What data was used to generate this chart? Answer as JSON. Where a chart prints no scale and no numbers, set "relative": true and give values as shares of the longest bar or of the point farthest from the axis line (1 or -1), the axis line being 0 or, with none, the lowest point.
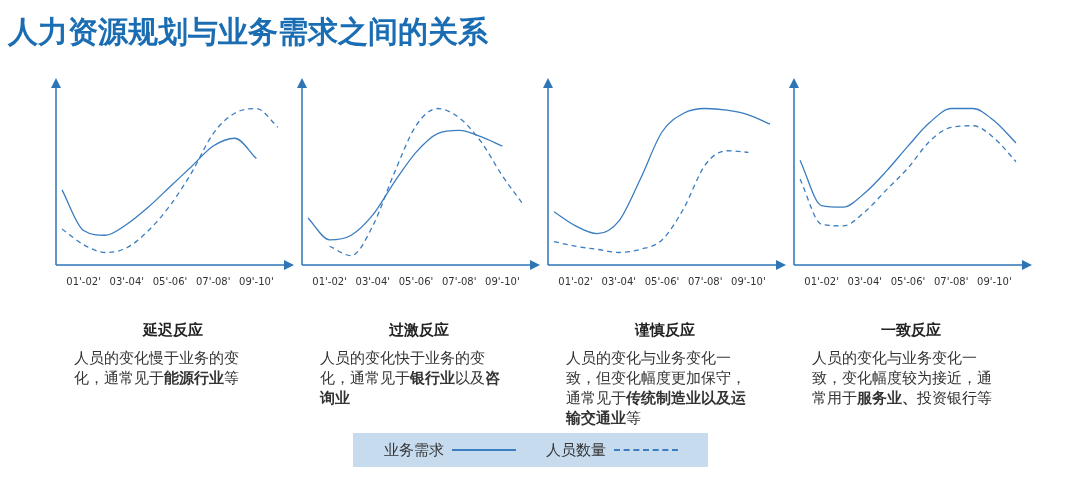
{
  "chart_data": [
    {
      "type": "other",
      "title": "人力资源规划与业务需求之间的关系"
    },
    {
      "type": "line",
      "relative": true,
      "title": "延迟反应",
      "legend": "bottom",
      "categories": [
        null,
        "01'-02'",
        null,
        "03'-04'",
        null,
        "05'-06'",
        null,
        "07'-08'",
        null,
        "09'-10'",
        null
      ],
      "series": [
        {
          "name": "业务需求",
          "color": "#3a7dc0",
          "line_style": "solid",
          "values": [
            0.48,
            0.22,
            0.19,
            0.26,
            0.37,
            0.5,
            0.63,
            0.76,
            0.81,
            0.68,
            null
          ]
        },
        {
          "name": "人员数量",
          "color": "#3a7dc0",
          "line_style": "dashed",
          "values": [
            0.23,
            0.13,
            0.08,
            0.11,
            0.22,
            0.38,
            0.59,
            0.84,
            0.97,
            1.0,
            0.88
          ]
        }
      ],
      "annotations": [
        "人员的变化慢于业务的变化，通常见于",
        "能源行业",
        "等"
      ]
    },
    {
      "type": "line",
      "relative": true,
      "title": "过激反应",
      "categories": [
        null,
        "01'-02'",
        null,
        "03'-04'",
        null,
        "05'-06'",
        null,
        "07'-08'",
        null,
        "09'-10'",
        null
      ],
      "series": [
        {
          "color": "#3a7dc0",
          "line_style": "solid",
          "values": [
            0.3,
            0.16,
            0.19,
            0.32,
            0.53,
            0.72,
            0.84,
            0.86,
            0.82,
            0.76,
            null
          ]
        },
        {
          "color": "#3a7dc0",
          "line_style": "dashed",
          "values": [
            null,
            0.12,
            0.06,
            0.25,
            0.59,
            0.89,
            1.0,
            0.94,
            0.79,
            0.57,
            0.38
          ]
        }
      ],
      "annotations": [
        "人员的变化快于业务的变化，通常见于",
        "银行业",
        "以及",
        "咨询业"
      ]
    },
    {
      "type": "line",
      "relative": true,
      "title": "谨慎反应",
      "categories": [
        null,
        "01'-02'",
        null,
        "03'-04'",
        null,
        "05'-06'",
        null,
        "07'-08'",
        null,
        "09'-10'",
        null
      ],
      "series": [
        {
          "color": "#3a7dc0",
          "line_style": "solid",
          "values": [
            0.34,
            0.25,
            0.2,
            0.28,
            0.55,
            0.85,
            0.97,
            1.0,
            0.99,
            0.96,
            0.9
          ]
        },
        {
          "color": "#3a7dc0",
          "line_style": "dashed",
          "values": [
            0.15,
            0.12,
            0.1,
            0.08,
            0.1,
            0.16,
            0.36,
            0.64,
            0.73,
            0.72,
            null
          ]
        }
      ],
      "annotations": [
        "人员的变化与业务变化一致，但变化幅度更加保守，通常见于",
        "传统制造业以及运输交通业",
        "等"
      ]
    },
    {
      "type": "line",
      "relative": true,
      "title": "一致反应",
      "categories": [
        null,
        "01'-02'",
        null,
        "03'-04'",
        null,
        "05'-06'",
        null,
        "07'-08'",
        null,
        "09'-10'",
        null
      ],
      "series": [
        {
          "color": "#3a7dc0",
          "line_style": "solid",
          "values": [
            0.67,
            0.38,
            0.37,
            0.46,
            0.6,
            0.76,
            0.91,
            1.0,
            1.0,
            0.92,
            0.78
          ]
        },
        {
          "color": "#3a7dc0",
          "line_style": "dashed",
          "values": [
            0.55,
            0.26,
            0.25,
            0.34,
            0.48,
            0.62,
            0.79,
            0.88,
            0.89,
            0.81,
            0.66
          ]
        }
      ],
      "annotations": [
        "人员的变化与业务变化一致，变化幅度较为接近，通常用于",
        "服务业、",
        "投资银行等"
      ]
    }
  ]
}
